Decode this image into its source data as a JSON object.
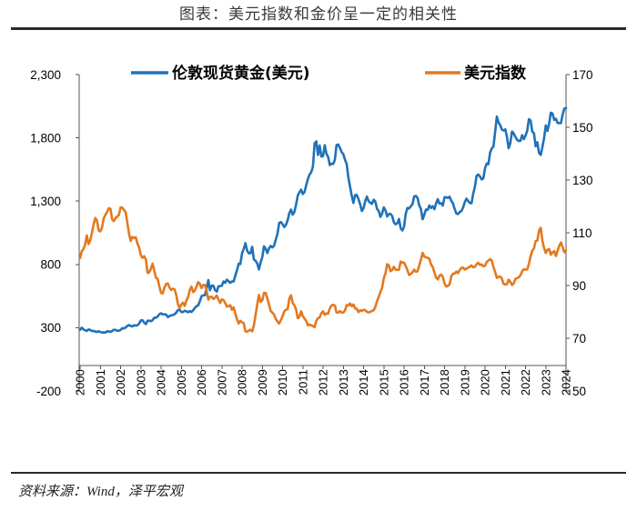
{
  "footer": {
    "source": "资料来源：Wind，泽平宏观"
  },
  "chart_data": {
    "type": "line",
    "title": "图表：美元指数和金价呈一定的相关性",
    "legend": "top",
    "grid": false,
    "ylim": [
      -200,
      2300
    ],
    "y2lim": [
      50,
      170
    ],
    "x_axis_crosses_y": 0,
    "y_ticks": [
      -200,
      300,
      800,
      1300,
      1800,
      2300
    ],
    "y_tick_labels": [
      "-200",
      "300",
      "800",
      "1,300",
      "1,800",
      "2,300"
    ],
    "y2_ticks": [
      50,
      70,
      90,
      110,
      130,
      150,
      170
    ],
    "y2_tick_labels": [
      "50",
      "70",
      "90",
      "110",
      "130",
      "150",
      "170"
    ],
    "x_tick_labels": [
      "2000",
      "2001",
      "2002",
      "2003",
      "2004",
      "2005",
      "2006",
      "2007",
      "2008",
      "2009",
      "2010",
      "2011",
      "2012",
      "2013",
      "2014",
      "2015",
      "2016",
      "2017",
      "2018",
      "2019",
      "2020",
      "2021",
      "2022",
      "2023",
      "2024"
    ],
    "x": [
      "2000-01",
      "2000-02",
      "2000-03",
      "2000-04",
      "2000-05",
      "2000-06",
      "2000-07",
      "2000-08",
      "2000-09",
      "2000-10",
      "2000-11",
      "2000-12",
      "2001-01",
      "2001-02",
      "2001-03",
      "2001-04",
      "2001-05",
      "2001-06",
      "2001-07",
      "2001-08",
      "2001-09",
      "2001-10",
      "2001-11",
      "2001-12",
      "2002-01",
      "2002-02",
      "2002-03",
      "2002-04",
      "2002-05",
      "2002-06",
      "2002-07",
      "2002-08",
      "2002-09",
      "2002-10",
      "2002-11",
      "2002-12",
      "2003-01",
      "2003-02",
      "2003-03",
      "2003-04",
      "2003-05",
      "2003-06",
      "2003-07",
      "2003-08",
      "2003-09",
      "2003-10",
      "2003-11",
      "2003-12",
      "2004-01",
      "2004-02",
      "2004-03",
      "2004-04",
      "2004-05",
      "2004-06",
      "2004-07",
      "2004-08",
      "2004-09",
      "2004-10",
      "2004-11",
      "2004-12",
      "2005-01",
      "2005-02",
      "2005-03",
      "2005-04",
      "2005-05",
      "2005-06",
      "2005-07",
      "2005-08",
      "2005-09",
      "2005-10",
      "2005-11",
      "2005-12",
      "2006-01",
      "2006-02",
      "2006-03",
      "2006-04",
      "2006-05",
      "2006-06",
      "2006-07",
      "2006-08",
      "2006-09",
      "2006-10",
      "2006-11",
      "2006-12",
      "2007-01",
      "2007-02",
      "2007-03",
      "2007-04",
      "2007-05",
      "2007-06",
      "2007-07",
      "2007-08",
      "2007-09",
      "2007-10",
      "2007-11",
      "2007-12",
      "2008-01",
      "2008-02",
      "2008-03",
      "2008-04",
      "2008-05",
      "2008-06",
      "2008-07",
      "2008-08",
      "2008-09",
      "2008-10",
      "2008-11",
      "2008-12",
      "2009-01",
      "2009-02",
      "2009-03",
      "2009-04",
      "2009-05",
      "2009-06",
      "2009-07",
      "2009-08",
      "2009-09",
      "2009-10",
      "2009-11",
      "2009-12",
      "2010-01",
      "2010-02",
      "2010-03",
      "2010-04",
      "2010-05",
      "2010-06",
      "2010-07",
      "2010-08",
      "2010-09",
      "2010-10",
      "2010-11",
      "2010-12",
      "2011-01",
      "2011-02",
      "2011-03",
      "2011-04",
      "2011-05",
      "2011-06",
      "2011-07",
      "2011-08",
      "2011-09",
      "2011-10",
      "2011-11",
      "2011-12",
      "2012-01",
      "2012-02",
      "2012-03",
      "2012-04",
      "2012-05",
      "2012-06",
      "2012-07",
      "2012-08",
      "2012-09",
      "2012-10",
      "2012-11",
      "2012-12",
      "2013-01",
      "2013-02",
      "2013-03",
      "2013-04",
      "2013-05",
      "2013-06",
      "2013-07",
      "2013-08",
      "2013-09",
      "2013-10",
      "2013-11",
      "2013-12",
      "2014-01",
      "2014-02",
      "2014-03",
      "2014-04",
      "2014-05",
      "2014-06",
      "2014-07",
      "2014-08",
      "2014-09",
      "2014-10",
      "2014-11",
      "2014-12",
      "2015-01",
      "2015-02",
      "2015-03",
      "2015-04",
      "2015-05",
      "2015-06",
      "2015-07",
      "2015-08",
      "2015-09",
      "2015-10",
      "2015-11",
      "2015-12",
      "2016-01",
      "2016-02",
      "2016-03",
      "2016-04",
      "2016-05",
      "2016-06",
      "2016-07",
      "2016-08",
      "2016-09",
      "2016-10",
      "2016-11",
      "2016-12",
      "2017-01",
      "2017-02",
      "2017-03",
      "2017-04",
      "2017-05",
      "2017-06",
      "2017-07",
      "2017-08",
      "2017-09",
      "2017-10",
      "2017-11",
      "2017-12",
      "2018-01",
      "2018-02",
      "2018-03",
      "2018-04",
      "2018-05",
      "2018-06",
      "2018-07",
      "2018-08",
      "2018-09",
      "2018-10",
      "2018-11",
      "2018-12",
      "2019-01",
      "2019-02",
      "2019-03",
      "2019-04",
      "2019-05",
      "2019-06",
      "2019-07",
      "2019-08",
      "2019-09",
      "2019-10",
      "2019-11",
      "2019-12",
      "2020-01",
      "2020-02",
      "2020-03",
      "2020-04",
      "2020-05",
      "2020-06",
      "2020-07",
      "2020-08",
      "2020-09",
      "2020-10",
      "2020-11",
      "2020-12",
      "2021-01",
      "2021-02",
      "2021-03",
      "2021-04",
      "2021-05",
      "2021-06",
      "2021-07",
      "2021-08",
      "2021-09",
      "2021-10",
      "2021-11",
      "2021-12",
      "2022-01",
      "2022-02",
      "2022-03",
      "2022-04",
      "2022-05",
      "2022-06",
      "2022-07",
      "2022-08",
      "2022-09",
      "2022-10",
      "2022-11",
      "2022-12",
      "2023-01",
      "2023-02",
      "2023-03",
      "2023-04",
      "2023-05",
      "2023-06",
      "2023-07",
      "2023-08",
      "2023-09",
      "2023-10",
      "2023-11",
      "2023-12",
      "2024-01"
    ],
    "series": [
      {
        "name": "伦敦现货黄金(美元)",
        "axis": "left",
        "color": "#1f72b8",
        "values": [
          284,
          300,
          286,
          280,
          275,
          286,
          282,
          274,
          274,
          270,
          266,
          272,
          266,
          262,
          263,
          261,
          272,
          270,
          268,
          273,
          284,
          283,
          276,
          276,
          282,
          296,
          294,
          302,
          314,
          321,
          314,
          310,
          319,
          317,
          319,
          333,
          357,
          359,
          340,
          328,
          355,
          356,
          351,
          360,
          379,
          379,
          389,
          407,
          414,
          405,
          406,
          404,
          384,
          392,
          398,
          400,
          406,
          420,
          439,
          442,
          424,
          424,
          434,
          429,
          422,
          431,
          424,
          438,
          456,
          470,
          476,
          510,
          549,
          555,
          557,
          610,
          676,
          596,
          633,
          632,
          598,
          585,
          627,
          629,
          631,
          665,
          655,
          679,
          667,
          655,
          665,
          665,
          712,
          754,
          806,
          803,
          889,
          922,
          968,
          909,
          888,
          889,
          939,
          839,
          829,
          807,
          760,
          816,
          858,
          943,
          924,
          890,
          928,
          946,
          934,
          949,
          996,
          1043,
          1127,
          1135,
          1118,
          1095,
          1113,
          1148,
          1205,
          1233,
          1193,
          1215,
          1271,
          1343,
          1370,
          1391,
          1356,
          1372,
          1424,
          1474,
          1510,
          1529,
          1573,
          1756,
          1772,
          1665,
          1739,
          1652,
          1656,
          1742,
          1673,
          1650,
          1585,
          1596,
          1594,
          1626,
          1744,
          1747,
          1721,
          1688,
          1671,
          1627,
          1593,
          1487,
          1414,
          1343,
          1286,
          1348,
          1349,
          1316,
          1275,
          1222,
          1244,
          1300,
          1336,
          1299,
          1287,
          1279,
          1311,
          1296,
          1239,
          1222,
          1176,
          1202,
          1251,
          1227,
          1179,
          1198,
          1199,
          1182,
          1131,
          1117,
          1125,
          1159,
          1086,
          1068,
          1097,
          1200,
          1246,
          1242,
          1260,
          1276,
          1337,
          1341,
          1326,
          1267,
          1238,
          1157,
          1192,
          1234,
          1231,
          1266,
          1246,
          1260,
          1236,
          1283,
          1315,
          1280,
          1283,
          1265,
          1331,
          1331,
          1325,
          1335,
          1303,
          1282,
          1238,
          1202,
          1198,
          1215,
          1221,
          1250,
          1292,
          1320,
          1300,
          1285,
          1284,
          1359,
          1413,
          1500,
          1510,
          1495,
          1471,
          1480,
          1560,
          1597,
          1592,
          1683,
          1716,
          1732,
          1847,
          1968,
          1922,
          1900,
          1866,
          1858,
          1867,
          1808,
          1718,
          1760,
          1850,
          1834,
          1807,
          1785,
          1775,
          1777,
          1821,
          1790,
          1817,
          1856,
          1948,
          1937,
          1849,
          1837,
          1733,
          1765,
          1681,
          1665,
          1726,
          1798,
          1898,
          1855,
          1912,
          1999,
          1992,
          1942,
          1951,
          1918,
          1916,
          1917,
          1985,
          2031,
          2034
        ]
      },
      {
        "name": "美元指数",
        "axis": "right",
        "color": "#e3791f",
        "values": [
          100.4,
          103.0,
          103.8,
          105.6,
          109.0,
          105.7,
          107.1,
          109.9,
          113.1,
          115.6,
          114.7,
          110.9,
          110.5,
          112.0,
          115.4,
          116.8,
          117.9,
          119.3,
          119.1,
          115.1,
          114.4,
          115.6,
          116.1,
          116.8,
          119.6,
          119.5,
          118.7,
          117.8,
          113.8,
          109.7,
          106.9,
          108.4,
          108.0,
          108.3,
          105.9,
          104.4,
          101.5,
          100.5,
          101.1,
          99.9,
          94.8,
          95.0,
          96.4,
          98.3,
          95.6,
          92.9,
          92.5,
          89.6,
          87.2,
          87.0,
          89.3,
          90.6,
          90.8,
          89.2,
          88.3,
          88.8,
          88.6,
          86.4,
          83.0,
          81.4,
          82.8,
          83.5,
          82.3,
          84.3,
          85.6,
          88.3,
          89.6,
          87.5,
          88.1,
          89.6,
          91.3,
          90.6,
          89.0,
          90.2,
          90.2,
          88.0,
          84.6,
          85.7,
          85.7,
          84.9,
          85.4,
          86.2,
          84.7,
          83.4,
          84.7,
          84.5,
          83.4,
          82.0,
          82.2,
          82.5,
          80.8,
          81.7,
          79.4,
          77.2,
          75.6,
          76.6,
          76.0,
          75.7,
          72.6,
          72.5,
          72.9,
          73.2,
          72.6,
          74.8,
          78.8,
          82.8,
          86.4,
          83.8,
          84.4,
          87.2,
          87.2,
          85.1,
          82.7,
          80.3,
          79.7,
          78.9,
          77.3,
          76.3,
          75.6,
          76.9,
          78.3,
          80.2,
          80.8,
          81.0,
          85.0,
          86.3,
          83.4,
          82.5,
          81.0,
          77.6,
          78.1,
          80.2,
          78.4,
          77.5,
          76.6,
          74.9,
          75.2,
          74.9,
          74.6,
          74.2,
          76.6,
          77.6,
          77.9,
          79.5,
          80.2,
          78.9,
          79.4,
          79.3,
          81.3,
          82.4,
          82.7,
          82.4,
          79.7,
          79.7,
          80.3,
          79.8,
          79.7,
          80.5,
          82.6,
          82.4,
          83.2,
          82.1,
          82.8,
          81.3,
          81.2,
          79.9,
          80.6,
          80.4,
          80.8,
          80.6,
          80.0,
          79.8,
          80.0,
          80.4,
          80.6,
          81.9,
          84.1,
          85.7,
          87.5,
          89.1,
          92.8,
          94.6,
          98.1,
          97.6,
          95.4,
          95.9,
          97.1,
          96.0,
          95.9,
          96.0,
          99.1,
          98.7,
          98.7,
          97.4,
          95.8,
          94.0,
          94.4,
          95.0,
          96.0,
          95.2,
          95.4,
          97.6,
          99.8,
          102.4,
          101.0,
          100.7,
          100.5,
          100.1,
          98.0,
          97.0,
          95.0,
          93.0,
          92.3,
          93.7,
          94.1,
          93.3,
          90.8,
          89.6,
          89.9,
          90.4,
          93.5,
          94.5,
          94.5,
          95.3,
          94.7,
          95.9,
          96.7,
          96.8,
          96.0,
          96.4,
          96.8,
          97.1,
          97.6,
          96.9,
          97.1,
          98.1,
          98.6,
          97.8,
          98.0,
          97.3,
          97.5,
          98.9,
          99.5,
          100.0,
          99.5,
          97.0,
          95.1,
          92.9,
          93.3,
          93.4,
          92.5,
          90.6,
          90.4,
          90.5,
          92.2,
          91.4,
          90.2,
          90.8,
          92.5,
          92.8,
          93.1,
          93.9,
          95.4,
          96.2,
          96.0,
          96.1,
          98.2,
          101.1,
          103.2,
          104.1,
          106.9,
          107.0,
          110.8,
          111.9,
          107.1,
          104.2,
          102.3,
          103.6,
          103.8,
          101.7,
          102.6,
          103.0,
          101.2,
          103.2,
          105.1,
          106.3,
          104.6,
          102.6,
          103.3
        ]
      }
    ]
  }
}
